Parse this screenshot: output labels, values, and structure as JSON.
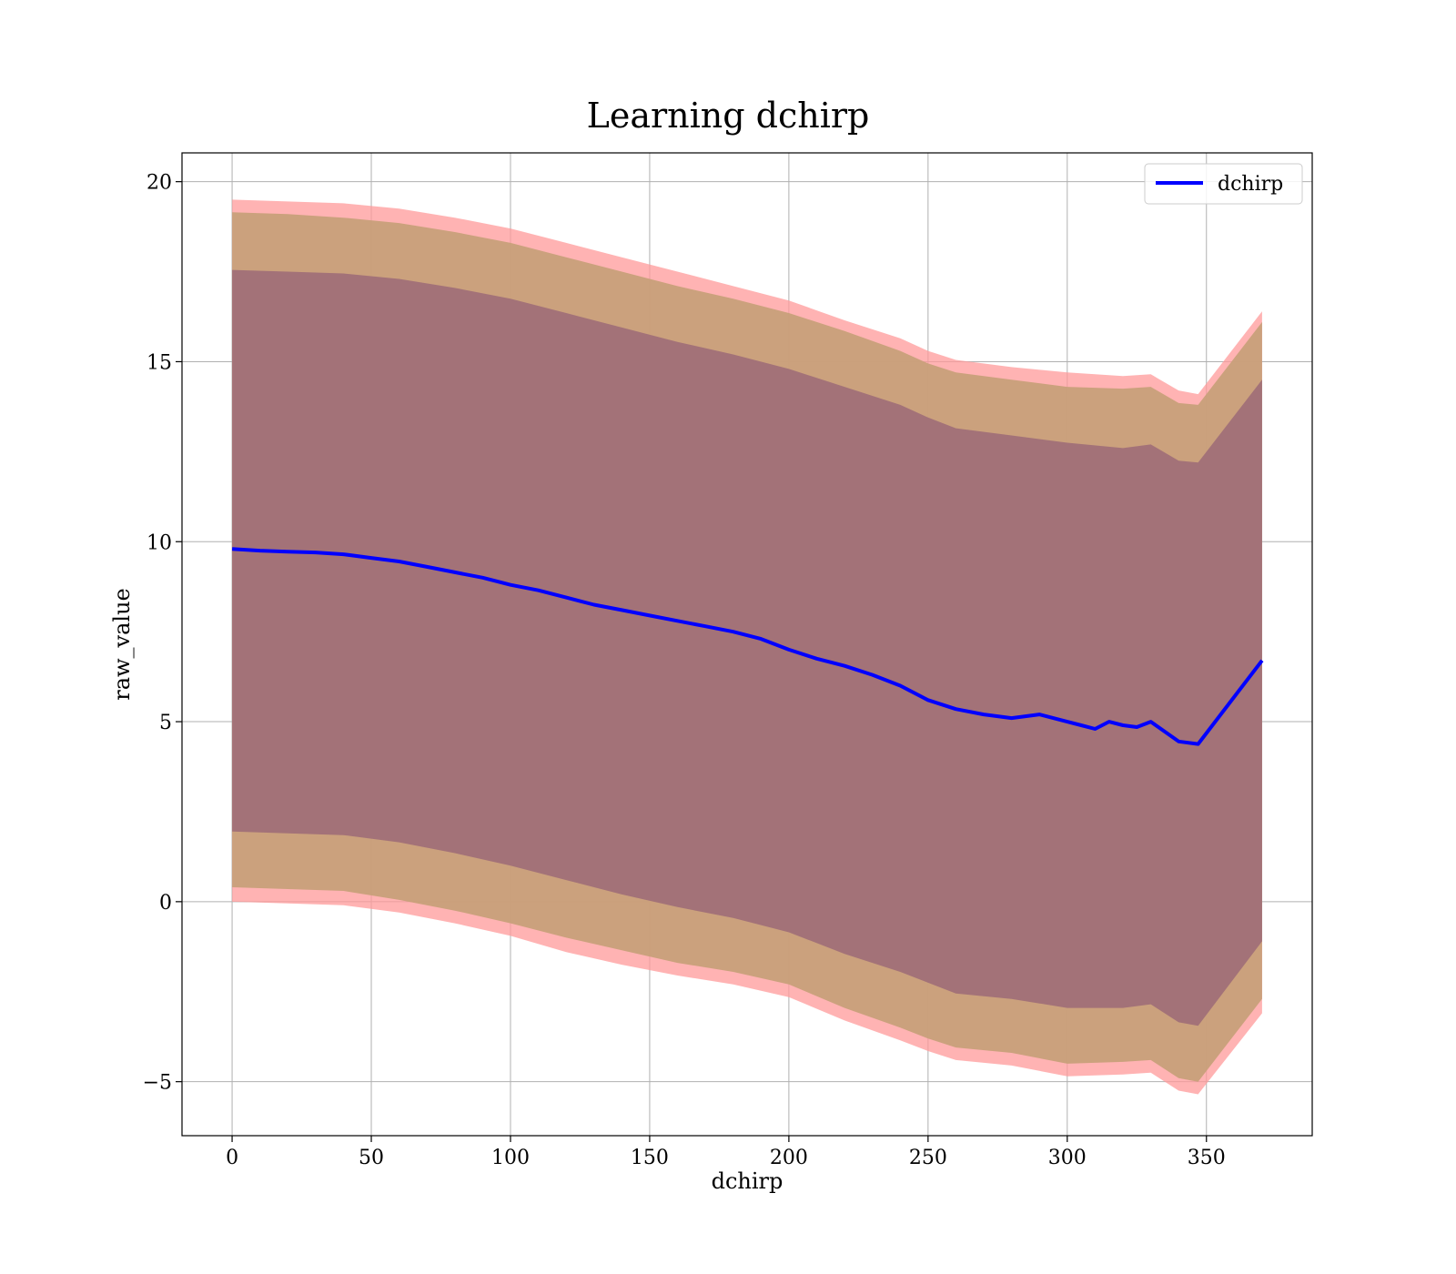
{
  "chart_data": {
    "type": "line",
    "title": "Learning dchirp",
    "xlabel": "dchirp",
    "ylabel": "raw_value",
    "xlim": [
      -18,
      388
    ],
    "ylim": [
      -6.5,
      20.8
    ],
    "x_ticks": [
      0,
      50,
      100,
      150,
      200,
      250,
      300,
      350
    ],
    "y_ticks": [
      -5,
      0,
      5,
      10,
      15,
      20
    ],
    "y_tick_labels": [
      "−5",
      "0",
      "5",
      "10",
      "15",
      "20"
    ],
    "grid": true,
    "legend_position": "top-right",
    "colors": {
      "line": "#0000ff",
      "outer_band": "#ff9999",
      "middle_band": "#c8a07a",
      "inner_band": "#a07078"
    },
    "series": [
      {
        "name": "dchirp",
        "x": [
          0,
          10,
          20,
          30,
          40,
          50,
          60,
          70,
          80,
          90,
          100,
          110,
          120,
          130,
          140,
          150,
          160,
          170,
          180,
          190,
          200,
          210,
          220,
          230,
          240,
          250,
          260,
          270,
          280,
          290,
          300,
          305,
          310,
          315,
          320,
          325,
          330,
          340,
          347,
          370
        ],
        "y": [
          9.8,
          9.75,
          9.72,
          9.7,
          9.65,
          9.55,
          9.45,
          9.3,
          9.15,
          9.0,
          8.8,
          8.65,
          8.45,
          8.25,
          8.1,
          7.95,
          7.8,
          7.65,
          7.5,
          7.3,
          7.0,
          6.75,
          6.55,
          6.3,
          6.0,
          5.6,
          5.35,
          5.2,
          5.1,
          5.2,
          5.0,
          4.9,
          4.8,
          5.0,
          4.9,
          4.85,
          5.0,
          4.45,
          4.38,
          6.7
        ]
      }
    ],
    "bands": [
      {
        "x": [
          0,
          20,
          40,
          60,
          80,
          100,
          120,
          140,
          160,
          180,
          200,
          220,
          240,
          250,
          260,
          280,
          300,
          320,
          330,
          340,
          347,
          370
        ],
        "upper": [
          19.5,
          19.45,
          19.4,
          19.25,
          19.0,
          18.7,
          18.3,
          17.9,
          17.5,
          17.1,
          16.7,
          16.15,
          15.65,
          15.3,
          15.05,
          14.85,
          14.7,
          14.6,
          14.65,
          14.2,
          14.1,
          16.4
        ],
        "lower": [
          0.0,
          -0.05,
          -0.1,
          -0.3,
          -0.6,
          -0.95,
          -1.4,
          -1.75,
          -2.05,
          -2.3,
          -2.65,
          -3.3,
          -3.85,
          -4.15,
          -4.4,
          -4.55,
          -4.85,
          -4.8,
          -4.75,
          -5.25,
          -5.35,
          -3.1
        ]
      },
      {
        "x": [
          0,
          20,
          40,
          60,
          80,
          100,
          120,
          140,
          160,
          180,
          200,
          220,
          240,
          250,
          260,
          280,
          300,
          320,
          330,
          340,
          347,
          370
        ],
        "upper": [
          19.15,
          19.1,
          19.0,
          18.85,
          18.6,
          18.3,
          17.9,
          17.5,
          17.1,
          16.75,
          16.35,
          15.85,
          15.3,
          14.95,
          14.7,
          14.5,
          14.3,
          14.25,
          14.3,
          13.85,
          13.8,
          16.1
        ],
        "lower": [
          0.4,
          0.35,
          0.3,
          0.05,
          -0.25,
          -0.6,
          -1.0,
          -1.35,
          -1.7,
          -1.95,
          -2.3,
          -2.95,
          -3.5,
          -3.8,
          -4.05,
          -4.2,
          -4.5,
          -4.45,
          -4.4,
          -4.9,
          -5.0,
          -2.7
        ]
      },
      {
        "x": [
          0,
          20,
          40,
          60,
          80,
          100,
          120,
          140,
          160,
          180,
          200,
          220,
          240,
          250,
          260,
          280,
          300,
          320,
          330,
          340,
          347,
          370
        ],
        "upper": [
          17.55,
          17.5,
          17.45,
          17.3,
          17.05,
          16.75,
          16.35,
          15.95,
          15.55,
          15.2,
          14.8,
          14.3,
          13.8,
          13.45,
          13.15,
          12.95,
          12.75,
          12.6,
          12.7,
          12.25,
          12.2,
          14.5
        ],
        "lower": [
          1.95,
          1.9,
          1.85,
          1.65,
          1.35,
          1.0,
          0.6,
          0.2,
          -0.15,
          -0.45,
          -0.85,
          -1.45,
          -1.95,
          -2.25,
          -2.55,
          -2.7,
          -2.95,
          -2.95,
          -2.85,
          -3.35,
          -3.45,
          -1.1
        ]
      }
    ]
  }
}
